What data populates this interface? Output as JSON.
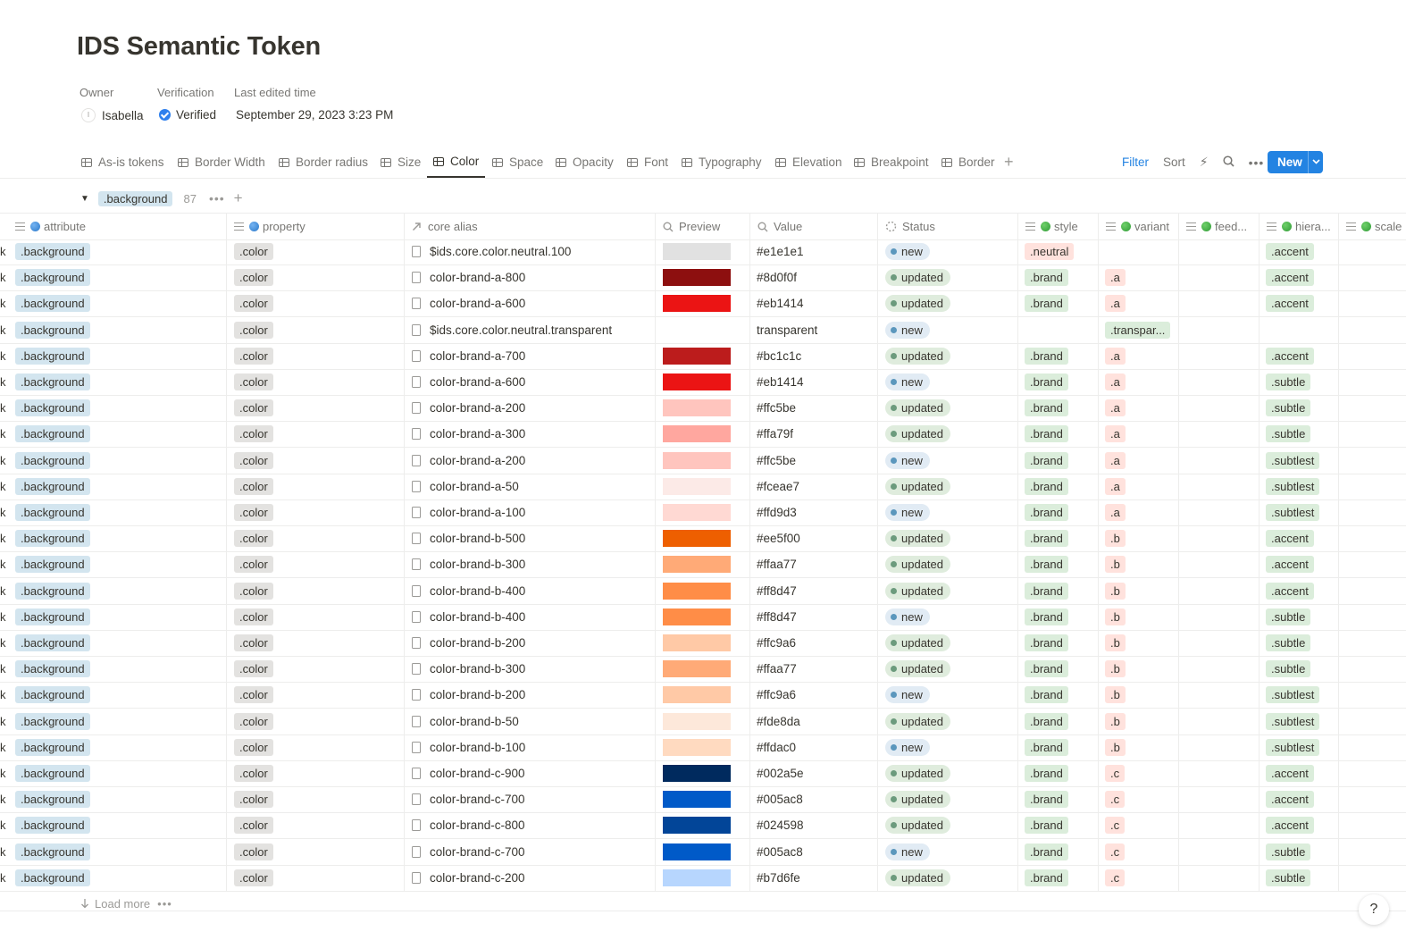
{
  "page": {
    "title": "IDS Semantic Token",
    "properties": {
      "owner_label": "Owner",
      "owner_initial": "I",
      "owner_value": "Isabella",
      "verification_label": "Verification",
      "verification_value": "Verified",
      "edited_label": "Last edited time",
      "edited_value": "September 29, 2023 3:23 PM"
    }
  },
  "tabs": [
    "As-is tokens",
    "Border Width",
    "Border radius",
    "Size",
    "Color",
    "Space",
    "Opacity",
    "Font",
    "Typography",
    "Elevation",
    "Breakpoint",
    "Border"
  ],
  "active_tab": "Color",
  "toolbar": {
    "filter": "Filter",
    "sort": "Sort",
    "new": "New"
  },
  "group": {
    "label": ".background",
    "count": "87"
  },
  "columns": {
    "attribute": "attribute",
    "property": "property",
    "core_alias": "core alias",
    "preview": "Preview",
    "value": "Value",
    "status": "Status",
    "style": "style",
    "variant": "variant",
    "feedback": "feed...",
    "hierarchy": "hiera...",
    "scale": "scale"
  },
  "edge_fragment": "k",
  "rows": [
    {
      "attribute": ".background",
      "property": ".color",
      "alias": "$ids.core.color.neutral.100",
      "color": "#e1e1e1",
      "value": "#e1e1e1",
      "status": "new",
      "style": ".neutral",
      "variant": "",
      "hierarchy": ".accent"
    },
    {
      "attribute": ".background",
      "property": ".color",
      "alias": "color-brand-a-800",
      "color": "#8d0f0f",
      "value": "#8d0f0f",
      "status": "updated",
      "style": ".brand",
      "variant": ".a",
      "hierarchy": ".accent"
    },
    {
      "attribute": ".background",
      "property": ".color",
      "alias": "color-brand-a-600",
      "color": "#eb1414",
      "value": "#eb1414",
      "status": "updated",
      "style": ".brand",
      "variant": ".a",
      "hierarchy": ".accent"
    },
    {
      "attribute": ".background",
      "property": ".color",
      "alias": "$ids.core.color.neutral.transparent",
      "color": "transparent",
      "value": "transparent",
      "status": "new",
      "style": "",
      "variant": ".transpar...",
      "hierarchy": ""
    },
    {
      "attribute": ".background",
      "property": ".color",
      "alias": "color-brand-a-700",
      "color": "#bc1c1c",
      "value": "#bc1c1c",
      "status": "updated",
      "style": ".brand",
      "variant": ".a",
      "hierarchy": ".accent"
    },
    {
      "attribute": ".background",
      "property": ".color",
      "alias": "color-brand-a-600",
      "color": "#eb1414",
      "value": "#eb1414",
      "status": "new",
      "style": ".brand",
      "variant": ".a",
      "hierarchy": ".subtle"
    },
    {
      "attribute": ".background",
      "property": ".color",
      "alias": "color-brand-a-200",
      "color": "#ffc5be",
      "value": "#ffc5be",
      "status": "updated",
      "style": ".brand",
      "variant": ".a",
      "hierarchy": ".subtle"
    },
    {
      "attribute": ".background",
      "property": ".color",
      "alias": "color-brand-a-300",
      "color": "#ffa79f",
      "value": "#ffa79f",
      "status": "updated",
      "style": ".brand",
      "variant": ".a",
      "hierarchy": ".subtle"
    },
    {
      "attribute": ".background",
      "property": ".color",
      "alias": "color-brand-a-200",
      "color": "#ffc5be",
      "value": "#ffc5be",
      "status": "new",
      "style": ".brand",
      "variant": ".a",
      "hierarchy": ".subtlest"
    },
    {
      "attribute": ".background",
      "property": ".color",
      "alias": "color-brand-a-50",
      "color": "#fceae7",
      "value": "#fceae7",
      "status": "updated",
      "style": ".brand",
      "variant": ".a",
      "hierarchy": ".subtlest"
    },
    {
      "attribute": ".background",
      "property": ".color",
      "alias": "color-brand-a-100",
      "color": "#ffd9d3",
      "value": "#ffd9d3",
      "status": "new",
      "style": ".brand",
      "variant": ".a",
      "hierarchy": ".subtlest"
    },
    {
      "attribute": ".background",
      "property": ".color",
      "alias": "color-brand-b-500",
      "color": "#ee5f00",
      "value": "#ee5f00",
      "status": "updated",
      "style": ".brand",
      "variant": ".b",
      "hierarchy": ".accent"
    },
    {
      "attribute": ".background",
      "property": ".color",
      "alias": "color-brand-b-300",
      "color": "#ffaa77",
      "value": "#ffaa77",
      "status": "updated",
      "style": ".brand",
      "variant": ".b",
      "hierarchy": ".accent"
    },
    {
      "attribute": ".background",
      "property": ".color",
      "alias": "color-brand-b-400",
      "color": "#ff8d47",
      "value": "#ff8d47",
      "status": "updated",
      "style": ".brand",
      "variant": ".b",
      "hierarchy": ".accent"
    },
    {
      "attribute": ".background",
      "property": ".color",
      "alias": "color-brand-b-400",
      "color": "#ff8d47",
      "value": "#ff8d47",
      "status": "new",
      "style": ".brand",
      "variant": ".b",
      "hierarchy": ".subtle"
    },
    {
      "attribute": ".background",
      "property": ".color",
      "alias": "color-brand-b-200",
      "color": "#ffc9a6",
      "value": "#ffc9a6",
      "status": "updated",
      "style": ".brand",
      "variant": ".b",
      "hierarchy": ".subtle"
    },
    {
      "attribute": ".background",
      "property": ".color",
      "alias": "color-brand-b-300",
      "color": "#ffaa77",
      "value": "#ffaa77",
      "status": "updated",
      "style": ".brand",
      "variant": ".b",
      "hierarchy": ".subtle"
    },
    {
      "attribute": ".background",
      "property": ".color",
      "alias": "color-brand-b-200",
      "color": "#ffc9a6",
      "value": "#ffc9a6",
      "status": "new",
      "style": ".brand",
      "variant": ".b",
      "hierarchy": ".subtlest"
    },
    {
      "attribute": ".background",
      "property": ".color",
      "alias": "color-brand-b-50",
      "color": "#fde8da",
      "value": "#fde8da",
      "status": "updated",
      "style": ".brand",
      "variant": ".b",
      "hierarchy": ".subtlest"
    },
    {
      "attribute": ".background",
      "property": ".color",
      "alias": "color-brand-b-100",
      "color": "#ffdac0",
      "value": "#ffdac0",
      "status": "new",
      "style": ".brand",
      "variant": ".b",
      "hierarchy": ".subtlest"
    },
    {
      "attribute": ".background",
      "property": ".color",
      "alias": "color-brand-c-900",
      "color": "#002a5e",
      "value": "#002a5e",
      "status": "updated",
      "style": ".brand",
      "variant": ".c",
      "hierarchy": ".accent"
    },
    {
      "attribute": ".background",
      "property": ".color",
      "alias": "color-brand-c-700",
      "color": "#005ac8",
      "value": "#005ac8",
      "status": "updated",
      "style": ".brand",
      "variant": ".c",
      "hierarchy": ".accent"
    },
    {
      "attribute": ".background",
      "property": ".color",
      "alias": "color-brand-c-800",
      "color": "#024598",
      "value": "#024598",
      "status": "updated",
      "style": ".brand",
      "variant": ".c",
      "hierarchy": ".accent"
    },
    {
      "attribute": ".background",
      "property": ".color",
      "alias": "color-brand-c-700",
      "color": "#005ac8",
      "value": "#005ac8",
      "status": "new",
      "style": ".brand",
      "variant": ".c",
      "hierarchy": ".subtle"
    },
    {
      "attribute": ".background",
      "property": ".color",
      "alias": "color-brand-c-200",
      "color": "#b7d6fe",
      "value": "#b7d6fe",
      "status": "updated",
      "style": ".brand",
      "variant": ".c",
      "hierarchy": ".subtle"
    }
  ],
  "footer": {
    "load_more": "Load more",
    "help": "?"
  }
}
